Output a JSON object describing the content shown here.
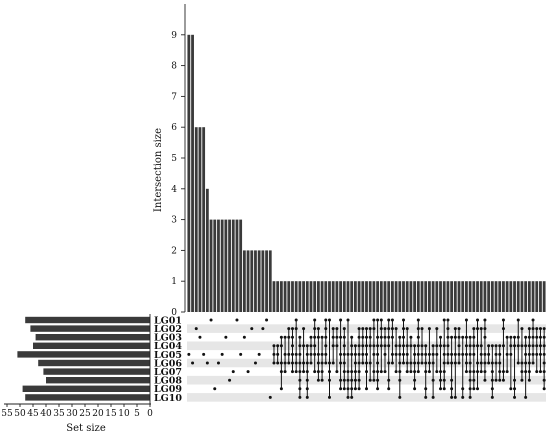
{
  "chart_data": {
    "type": "bar",
    "subtype": "upset",
    "ylabel": "Intersection size",
    "xlabel_sets": "Set size",
    "intersection_ylim": [
      0,
      10
    ],
    "intersection_yticks": [
      "0",
      "1",
      "2",
      "3",
      "4",
      "5",
      "6",
      "7",
      "8",
      "9"
    ],
    "set_xlim": [
      0,
      55
    ],
    "set_xticks": [
      "55",
      "50",
      "45",
      "40",
      "35",
      "30",
      "25",
      "20",
      "15",
      "10",
      "5",
      "0"
    ],
    "set_xtick_values": [
      55,
      50,
      45,
      40,
      35,
      30,
      25,
      20,
      15,
      10,
      5,
      0
    ],
    "sets": [
      "LG01",
      "LG02",
      "LG03",
      "LG04",
      "LG05",
      "LG06",
      "LG07",
      "LG08",
      "LG09",
      "LG10"
    ],
    "set_sizes": [
      48,
      46,
      44,
      45,
      51,
      43,
      41,
      40,
      49,
      48
    ],
    "intersection_sizes": [
      9,
      9,
      6,
      6,
      6,
      4,
      3,
      3,
      3,
      3,
      3,
      3,
      3,
      3,
      3,
      2,
      2,
      2,
      2,
      2,
      2,
      2,
      2,
      1,
      1,
      1,
      1,
      1,
      1,
      1,
      1,
      1,
      1,
      1,
      1,
      1,
      1,
      1,
      1,
      1,
      1,
      1,
      1,
      1,
      1,
      1,
      1,
      1,
      1,
      1,
      1,
      1,
      1,
      1,
      1,
      1,
      1,
      1,
      1,
      1,
      1,
      1,
      1,
      1,
      1,
      1,
      1,
      1,
      1,
      1,
      1,
      1,
      1,
      1,
      1,
      1,
      1,
      1,
      1,
      1,
      1,
      1,
      1,
      1,
      1,
      1,
      1,
      1,
      1,
      1,
      1,
      1,
      1,
      1,
      1,
      1,
      1
    ],
    "colors": {
      "bar": "#3a3a3a",
      "dot_on": "#111111",
      "stripe": "#e6e6e6"
    }
  }
}
